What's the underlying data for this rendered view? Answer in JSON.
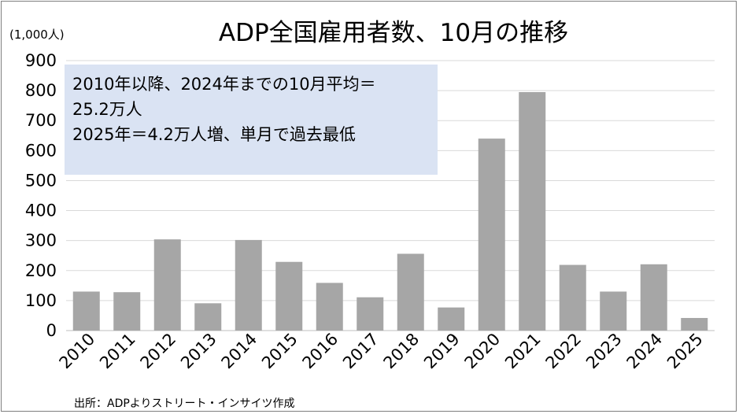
{
  "chart_data": {
    "type": "bar",
    "title": "ADP全国雇用者数、10月の推移",
    "ylabel": "(1,000人)",
    "xlabel": "",
    "ylim": [
      0,
      900
    ],
    "yticks": [
      0,
      100,
      200,
      300,
      400,
      500,
      600,
      700,
      800,
      900
    ],
    "grid": true,
    "bar_color": "#a6a6a6",
    "categories": [
      "2010",
      "2011",
      "2012",
      "2013",
      "2014",
      "2015",
      "2016",
      "2017",
      "2018",
      "2019",
      "2020",
      "2021",
      "2022",
      "2023",
      "2024",
      "2025"
    ],
    "values": [
      130,
      128,
      304,
      91,
      302,
      229,
      159,
      111,
      256,
      77,
      640,
      795,
      219,
      130,
      221,
      42
    ],
    "annotation": {
      "lines": [
        "2010年以降、2024年までの10月平均＝",
        "25.2万人",
        "2025年＝4.2万人増、単月で過去最低"
      ],
      "background": "#dae3f3"
    },
    "source": "出所：ADPよりストリート・インサイツ作成"
  }
}
